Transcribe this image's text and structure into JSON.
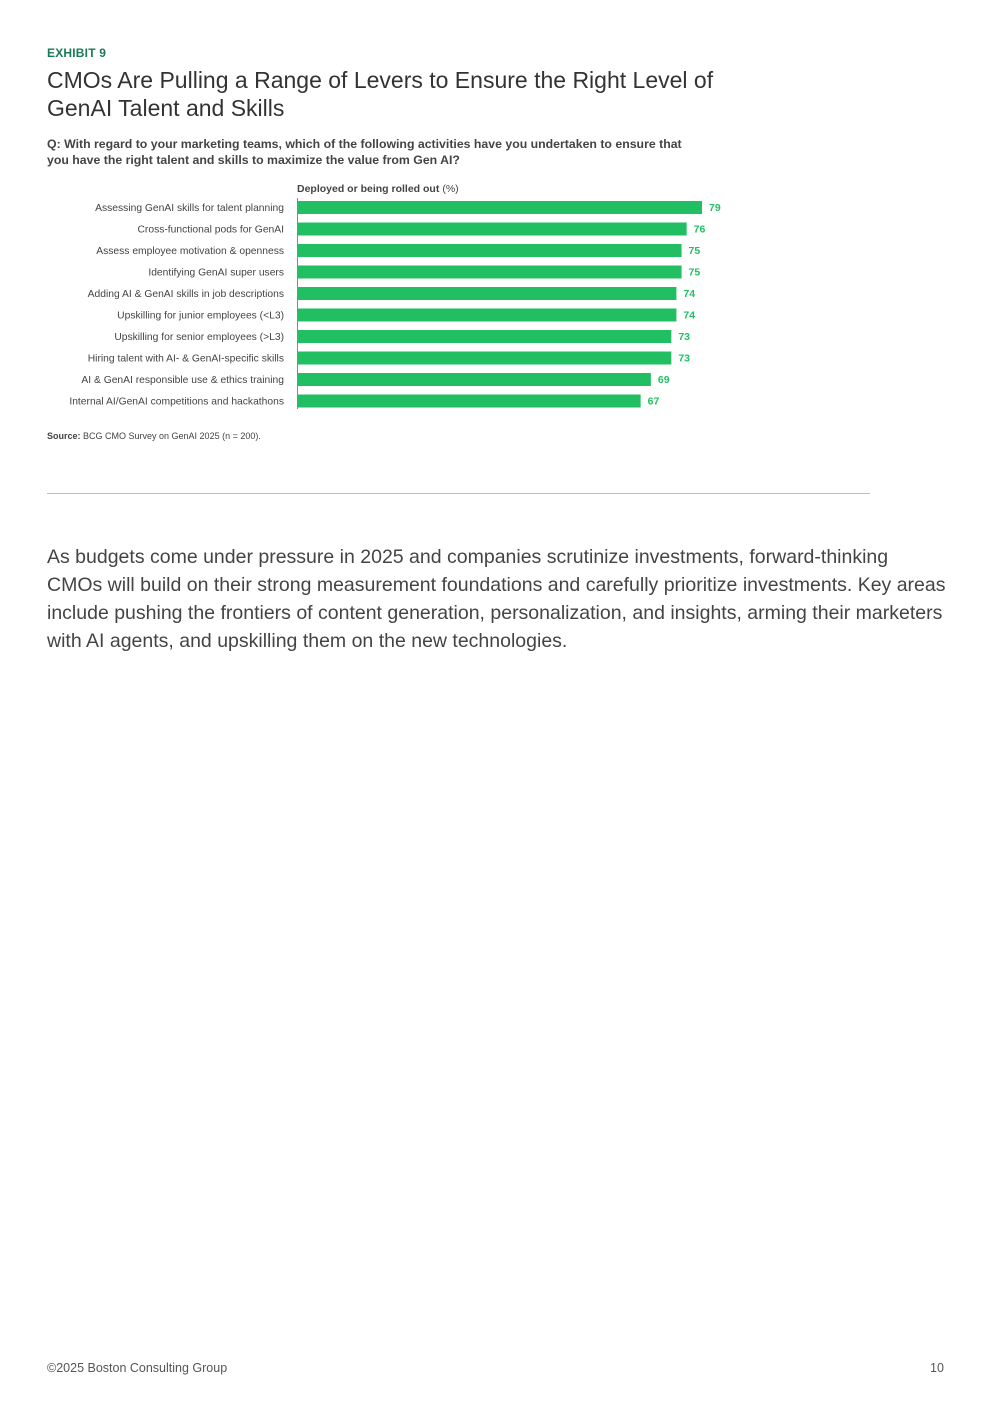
{
  "exhibit_label": "EXHIBIT 9",
  "title": "CMOs Are Pulling a Range of Levers to Ensure the Right Level of GenAI Talent and Skills",
  "question": "Q: With regard to your marketing teams, which of the following activities have you undertaken to ensure that you have the right talent and skills to maximize the value from Gen AI?",
  "source_label": "Source:",
  "source_text": " BCG CMO Survey on GenAI 2025 (n = 200).",
  "body_text": "As budgets come under pressure in 2025 and companies scrutinize investments, forward-thinking CMOs will build on their strong measurement foundations and carefully prioritize investments. Key areas include pushing the frontiers of content generation, personalization, and insights, arming their marketers with AI agents, and upskilling them on the new technologies.",
  "footer": {
    "copyright": "©2025 Boston Consulting Group",
    "page_number": "10"
  },
  "colors": {
    "bar": "#21bf61",
    "label": "#21bf61",
    "exhibit": "#197a56"
  },
  "chart_data": {
    "type": "bar",
    "orientation": "horizontal",
    "series_title": "Deployed or being rolled out",
    "series_unit": "(%)",
    "categories": [
      "Assessing GenAI skills for talent planning",
      "Cross-functional pods for GenAI",
      "Assess employee motivation & openness",
      "Identifying GenAI super users",
      "Adding AI & GenAI skills in job descriptions",
      "Upskilling for junior employees (<L3)",
      "Upskilling for senior employees (>L3)",
      "Hiring talent with AI- & GenAI-specific skills",
      "AI & GenAI responsible use & ethics training",
      "Internal AI/GenAI competitions and hackathons"
    ],
    "values": [
      79,
      76,
      75,
      75,
      74,
      74,
      73,
      73,
      69,
      67
    ],
    "xlim": [
      0,
      79
    ],
    "grid": false,
    "legend": "none"
  }
}
